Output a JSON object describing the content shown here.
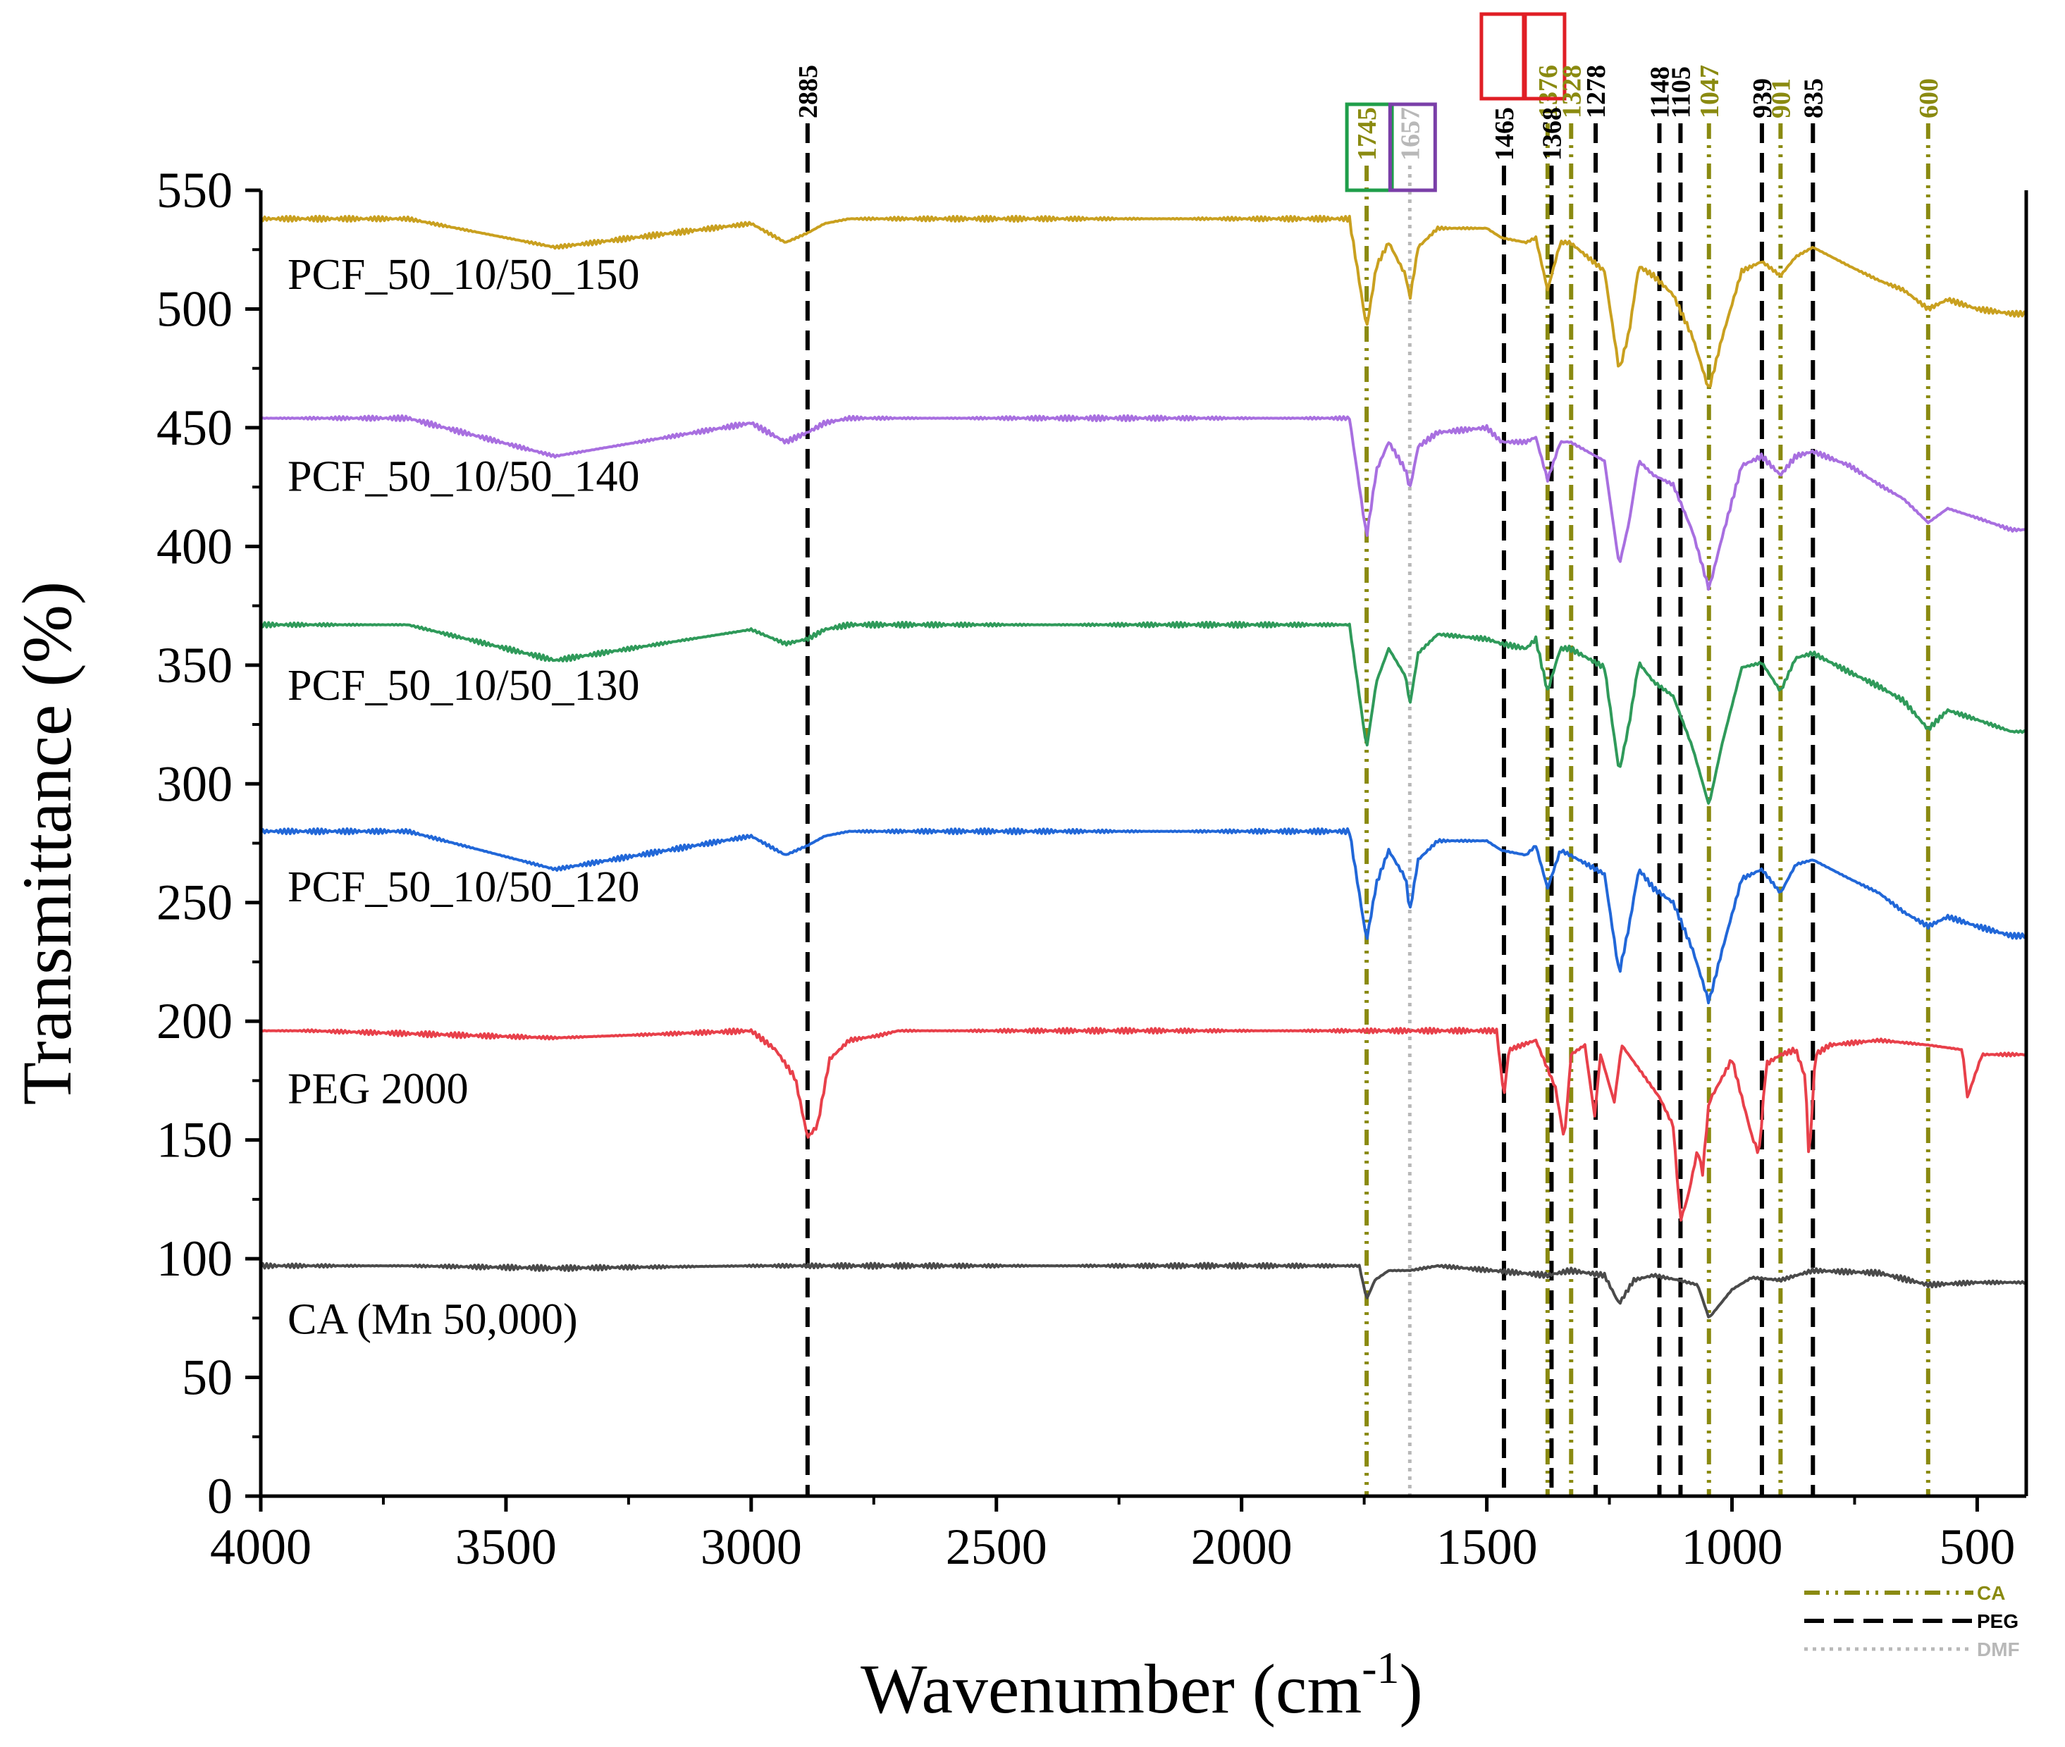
{
  "chart_data": {
    "type": "line",
    "title": "",
    "xlabel": "Wavenumber (cm",
    "xlabel_sup": "-1",
    "xlabel_suffix": ")",
    "ylabel": "Transmittance (%)",
    "xlim": [
      4000,
      400
    ],
    "ylim": [
      0,
      550
    ],
    "x_ticks": [
      4000,
      3500,
      3000,
      2500,
      2000,
      1500,
      1000,
      500
    ],
    "y_ticks": [
      0,
      50,
      100,
      150,
      200,
      250,
      300,
      350,
      400,
      450,
      500,
      550
    ],
    "series": [
      {
        "name": "CA (Mn 50,000)",
        "color": "#4a4a4a",
        "baseline": 97,
        "label_y": 75,
        "end": 88,
        "shape": [
          [
            3700,
            0
          ],
          [
            3400,
            -1
          ],
          [
            3000,
            0
          ],
          [
            1760,
            0
          ],
          [
            1745,
            -14
          ],
          [
            1728,
            -6
          ],
          [
            1700,
            -2
          ],
          [
            1657,
            -2
          ],
          [
            1600,
            0
          ],
          [
            1376,
            -4
          ],
          [
            1330,
            -2
          ],
          [
            1260,
            -4
          ],
          [
            1230,
            -16
          ],
          [
            1200,
            -6
          ],
          [
            1160,
            -4
          ],
          [
            1110,
            -6
          ],
          [
            1070,
            -8
          ],
          [
            1047,
            -22
          ],
          [
            1000,
            -10
          ],
          [
            960,
            -5
          ],
          [
            901,
            -6
          ],
          [
            835,
            -2
          ],
          [
            700,
            -3
          ],
          [
            600,
            -8
          ],
          [
            500,
            -7
          ]
        ]
      },
      {
        "name": "PEG 2000",
        "color": "#e8404a",
        "baseline": 196,
        "label_y": 172,
        "end": 188,
        "shape": [
          [
            3900,
            0
          ],
          [
            3400,
            -3
          ],
          [
            3000,
            0
          ],
          [
            2950,
            -8
          ],
          [
            2910,
            -20
          ],
          [
            2885,
            -45
          ],
          [
            2865,
            -40
          ],
          [
            2840,
            -12
          ],
          [
            2800,
            -4
          ],
          [
            2740,
            -2
          ],
          [
            2700,
            0
          ],
          [
            1480,
            0
          ],
          [
            1465,
            -28
          ],
          [
            1455,
            -8
          ],
          [
            1400,
            -4
          ],
          [
            1360,
            -24
          ],
          [
            1342,
            -46
          ],
          [
            1328,
            -10
          ],
          [
            1300,
            -6
          ],
          [
            1280,
            -36
          ],
          [
            1268,
            -10
          ],
          [
            1240,
            -30
          ],
          [
            1225,
            -6
          ],
          [
            1148,
            -28
          ],
          [
            1120,
            -40
          ],
          [
            1105,
            -80
          ],
          [
            1090,
            -70
          ],
          [
            1070,
            -50
          ],
          [
            1060,
            -60
          ],
          [
            1047,
            -30
          ],
          [
            1000,
            -12
          ],
          [
            960,
            -44
          ],
          [
            945,
            -52
          ],
          [
            930,
            -14
          ],
          [
            900,
            -10
          ],
          [
            870,
            -8
          ],
          [
            850,
            -20
          ],
          [
            843,
            -56
          ],
          [
            830,
            -10
          ],
          [
            800,
            -6
          ],
          [
            700,
            -4
          ],
          [
            600,
            -6
          ],
          [
            530,
            -8
          ],
          [
            520,
            -28
          ],
          [
            510,
            -22
          ],
          [
            490,
            -10
          ]
        ]
      },
      {
        "name": "PCF_50_10/50_120",
        "color": "#2167d8",
        "baseline": 280,
        "label_y": 257,
        "end": 236,
        "shape": [
          [
            3700,
            0
          ],
          [
            3400,
            -16
          ],
          [
            3000,
            -2
          ],
          [
            2930,
            -10
          ],
          [
            2885,
            -6
          ],
          [
            2850,
            -2
          ],
          [
            2800,
            0
          ],
          [
            1780,
            0
          ],
          [
            1745,
            -46
          ],
          [
            1725,
            -22
          ],
          [
            1700,
            -8
          ],
          [
            1665,
            -20
          ],
          [
            1657,
            -34
          ],
          [
            1640,
            -12
          ],
          [
            1600,
            -4
          ],
          [
            1500,
            -4
          ],
          [
            1470,
            -8
          ],
          [
            1420,
            -10
          ],
          [
            1400,
            -6
          ],
          [
            1376,
            -24
          ],
          [
            1350,
            -8
          ],
          [
            1330,
            -10
          ],
          [
            1260,
            -18
          ],
          [
            1230,
            -60
          ],
          [
            1210,
            -40
          ],
          [
            1190,
            -16
          ],
          [
            1160,
            -24
          ],
          [
            1120,
            -30
          ],
          [
            1080,
            -50
          ],
          [
            1047,
            -72
          ],
          [
            1020,
            -50
          ],
          [
            980,
            -20
          ],
          [
            939,
            -16
          ],
          [
            901,
            -26
          ],
          [
            870,
            -14
          ],
          [
            835,
            -12
          ],
          [
            760,
            -20
          ],
          [
            700,
            -26
          ],
          [
            650,
            -34
          ],
          [
            600,
            -40
          ],
          [
            560,
            -36
          ],
          [
            500,
            -40
          ],
          [
            430,
            -44
          ]
        ]
      },
      {
        "name": "PCF_50_10/50_130",
        "color": "#2f9a5a",
        "baseline": 367,
        "label_y": 342,
        "end": 322,
        "shape": [
          [
            3700,
            0
          ],
          [
            3400,
            -15
          ],
          [
            3000,
            -2
          ],
          [
            2930,
            -8
          ],
          [
            2885,
            -6
          ],
          [
            2850,
            -2
          ],
          [
            2800,
            0
          ],
          [
            1780,
            0
          ],
          [
            1745,
            -52
          ],
          [
            1725,
            -24
          ],
          [
            1700,
            -10
          ],
          [
            1665,
            -22
          ],
          [
            1657,
            -34
          ],
          [
            1640,
            -12
          ],
          [
            1600,
            -4
          ],
          [
            1500,
            -6
          ],
          [
            1470,
            -8
          ],
          [
            1420,
            -10
          ],
          [
            1400,
            -6
          ],
          [
            1376,
            -28
          ],
          [
            1350,
            -10
          ],
          [
            1330,
            -10
          ],
          [
            1260,
            -18
          ],
          [
            1230,
            -62
          ],
          [
            1210,
            -42
          ],
          [
            1190,
            -16
          ],
          [
            1160,
            -24
          ],
          [
            1120,
            -30
          ],
          [
            1080,
            -52
          ],
          [
            1047,
            -76
          ],
          [
            1020,
            -50
          ],
          [
            980,
            -18
          ],
          [
            939,
            -16
          ],
          [
            901,
            -28
          ],
          [
            870,
            -14
          ],
          [
            835,
            -12
          ],
          [
            760,
            -20
          ],
          [
            700,
            -26
          ],
          [
            650,
            -32
          ],
          [
            600,
            -44
          ],
          [
            560,
            -36
          ],
          [
            500,
            -40
          ],
          [
            430,
            -45
          ]
        ]
      },
      {
        "name": "PCF_50_10/50_140",
        "color": "#a86fe0",
        "baseline": 454,
        "label_y": 430,
        "end": 408,
        "shape": [
          [
            3700,
            0
          ],
          [
            3400,
            -16
          ],
          [
            3000,
            -2
          ],
          [
            2930,
            -10
          ],
          [
            2885,
            -6
          ],
          [
            2850,
            -2
          ],
          [
            2800,
            0
          ],
          [
            1780,
            0
          ],
          [
            1745,
            -50
          ],
          [
            1725,
            -22
          ],
          [
            1700,
            -10
          ],
          [
            1665,
            -22
          ],
          [
            1657,
            -30
          ],
          [
            1640,
            -12
          ],
          [
            1600,
            -6
          ],
          [
            1500,
            -4
          ],
          [
            1470,
            -10
          ],
          [
            1420,
            -10
          ],
          [
            1400,
            -8
          ],
          [
            1376,
            -26
          ],
          [
            1350,
            -10
          ],
          [
            1330,
            -10
          ],
          [
            1260,
            -18
          ],
          [
            1230,
            -62
          ],
          [
            1210,
            -44
          ],
          [
            1190,
            -18
          ],
          [
            1160,
            -24
          ],
          [
            1120,
            -28
          ],
          [
            1080,
            -48
          ],
          [
            1047,
            -72
          ],
          [
            1020,
            -50
          ],
          [
            980,
            -20
          ],
          [
            939,
            -16
          ],
          [
            901,
            -24
          ],
          [
            870,
            -16
          ],
          [
            835,
            -14
          ],
          [
            760,
            -20
          ],
          [
            700,
            -28
          ],
          [
            650,
            -34
          ],
          [
            600,
            -44
          ],
          [
            560,
            -38
          ],
          [
            500,
            -42
          ],
          [
            430,
            -47
          ]
        ]
      },
      {
        "name": "PCF_50_10/50_150",
        "color": "#c9a01f",
        "baseline": 538,
        "label_y": 515,
        "end": 499,
        "shape": [
          [
            3700,
            0
          ],
          [
            3400,
            -12
          ],
          [
            3000,
            -2
          ],
          [
            2930,
            -10
          ],
          [
            2885,
            -6
          ],
          [
            2850,
            -2
          ],
          [
            2800,
            0
          ],
          [
            1780,
            0
          ],
          [
            1745,
            -46
          ],
          [
            1725,
            -20
          ],
          [
            1700,
            -10
          ],
          [
            1665,
            -24
          ],
          [
            1657,
            -34
          ],
          [
            1640,
            -12
          ],
          [
            1600,
            -4
          ],
          [
            1500,
            -4
          ],
          [
            1470,
            -8
          ],
          [
            1420,
            -10
          ],
          [
            1400,
            -8
          ],
          [
            1376,
            -30
          ],
          [
            1350,
            -10
          ],
          [
            1330,
            -10
          ],
          [
            1260,
            -22
          ],
          [
            1230,
            -64
          ],
          [
            1210,
            -48
          ],
          [
            1190,
            -20
          ],
          [
            1160,
            -24
          ],
          [
            1120,
            -32
          ],
          [
            1080,
            -50
          ],
          [
            1047,
            -72
          ],
          [
            1020,
            -50
          ],
          [
            980,
            -22
          ],
          [
            939,
            -18
          ],
          [
            901,
            -24
          ],
          [
            870,
            -16
          ],
          [
            835,
            -12
          ],
          [
            760,
            -20
          ],
          [
            700,
            -26
          ],
          [
            650,
            -30
          ],
          [
            600,
            -38
          ],
          [
            560,
            -34
          ],
          [
            500,
            -38
          ],
          [
            430,
            -40
          ]
        ]
      }
    ],
    "reference_lines": [
      {
        "x": 2885,
        "label": "2885",
        "group": "PEG"
      },
      {
        "x": 1745,
        "label": "1745",
        "group": "CA",
        "box": "#1f9e4a"
      },
      {
        "x": 1657,
        "label": "1657",
        "group": "DMF",
        "box": "#7a3fa8"
      },
      {
        "x": 1465,
        "label": "1465",
        "group": "PEG",
        "box": "#e01e25"
      },
      {
        "x": 1376,
        "label": "1376",
        "group": "CA"
      },
      {
        "x": 1368,
        "label": "1368",
        "group": "PEG",
        "box": "#e01e25"
      },
      {
        "x": 1328,
        "label": "1328",
        "group": "CA"
      },
      {
        "x": 1278,
        "label": "1278",
        "group": "PEG"
      },
      {
        "x": 1148,
        "label": "1148",
        "group": "PEG"
      },
      {
        "x": 1105,
        "label": "1105",
        "group": "PEG"
      },
      {
        "x": 1047,
        "label": "1047",
        "group": "CA"
      },
      {
        "x": 939,
        "label": "939",
        "group": "PEG"
      },
      {
        "x": 901,
        "label": "901",
        "group": "CA"
      },
      {
        "x": 835,
        "label": "835",
        "group": "PEG"
      },
      {
        "x": 600,
        "label": "600",
        "group": "CA"
      }
    ],
    "legend": {
      "placement": "bottom-right",
      "entries": [
        {
          "name": "CA",
          "group": "CA"
        },
        {
          "name": "PEG",
          "group": "PEG"
        },
        {
          "name": "DMF",
          "group": "DMF"
        }
      ]
    },
    "group_colors": {
      "CA": "#8a8a10",
      "PEG": "#000000",
      "DMF": "#b8b8b8"
    }
  }
}
